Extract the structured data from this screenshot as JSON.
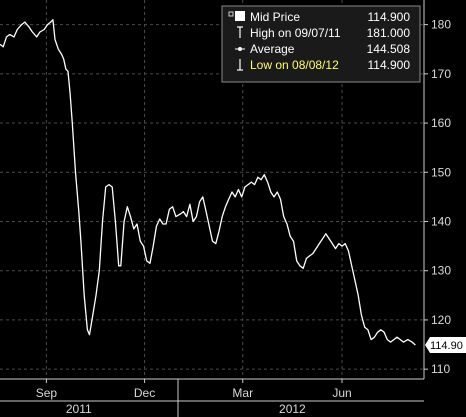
{
  "chart_data": {
    "type": "line",
    "title": "",
    "xlabel": "",
    "ylabel": "",
    "ylim": [
      108,
      185
    ],
    "xlim": [
      "2011-07-20",
      "2012-08-16"
    ],
    "y_ticks": [
      110,
      120,
      130,
      140,
      150,
      160,
      170,
      180
    ],
    "x_ticks": [
      {
        "label": "Sep",
        "date": "2011-09-01"
      },
      {
        "label": "Dec",
        "date": "2011-12-01"
      },
      {
        "label": "Mar",
        "date": "2012-03-01"
      },
      {
        "label": "Jun",
        "date": "2012-06-01"
      }
    ],
    "year_labels": [
      {
        "label": "2011",
        "date": "2011-10-01"
      },
      {
        "label": "2012",
        "date": "2012-04-16"
      }
    ],
    "year_separator": "2012-01-01",
    "grid": true,
    "legend_position": "top-right",
    "colors": {
      "background": "#000000",
      "line": "#ffffff",
      "grid": "#4a4a4a",
      "legend_bg": "#1a1a1a",
      "low_highlight": "#ffff66",
      "tag_bg": "#ffffff",
      "tag_text": "#000000"
    },
    "legend": [
      {
        "icon": "square-icon",
        "label": "Mid Price",
        "value": "114.900"
      },
      {
        "icon": "high-marker-icon",
        "label": "High on 09/07/11",
        "value": "181.000"
      },
      {
        "icon": "average-marker-icon",
        "label": "Average",
        "value": "144.508"
      },
      {
        "icon": "low-marker-icon",
        "label": "Low on 08/08/12",
        "value": "114.900",
        "highlight": true
      }
    ],
    "last_value_tag": "114.90",
    "series": [
      {
        "points": [
          [
            "2011-07-20",
            176.0
          ],
          [
            "2011-07-23",
            175.5
          ],
          [
            "2011-07-26",
            177.5
          ],
          [
            "2011-07-29",
            178.0
          ],
          [
            "2011-08-02",
            177.5
          ],
          [
            "2011-08-05",
            179.0
          ],
          [
            "2011-08-09",
            180.0
          ],
          [
            "2011-08-12",
            180.5
          ],
          [
            "2011-08-16",
            179.5
          ],
          [
            "2011-08-19",
            178.5
          ],
          [
            "2011-08-23",
            177.5
          ],
          [
            "2011-08-26",
            178.5
          ],
          [
            "2011-08-30",
            179.0
          ],
          [
            "2011-09-02",
            180.0
          ],
          [
            "2011-09-05",
            180.5
          ],
          [
            "2011-09-07",
            181.0
          ],
          [
            "2011-09-09",
            177.0
          ],
          [
            "2011-09-12",
            175.0
          ],
          [
            "2011-09-15",
            174.0
          ],
          [
            "2011-09-17",
            173.0
          ],
          [
            "2011-09-19",
            171.0
          ],
          [
            "2011-09-21",
            170.5
          ],
          [
            "2011-09-23",
            166.0
          ],
          [
            "2011-09-25",
            160.0
          ],
          [
            "2011-09-28",
            150.0
          ],
          [
            "2011-10-01",
            142.0
          ],
          [
            "2011-10-03",
            136.0
          ],
          [
            "2011-10-06",
            125.0
          ],
          [
            "2011-10-09",
            118.0
          ],
          [
            "2011-10-11",
            117.0
          ],
          [
            "2011-10-14",
            121.0
          ],
          [
            "2011-10-17",
            125.0
          ],
          [
            "2011-10-20",
            130.0
          ],
          [
            "2011-10-23",
            140.0
          ],
          [
            "2011-10-26",
            147.0
          ],
          [
            "2011-10-29",
            147.5
          ],
          [
            "2011-11-01",
            147.0
          ],
          [
            "2011-11-04",
            140.0
          ],
          [
            "2011-11-07",
            131.0
          ],
          [
            "2011-11-09",
            131.0
          ],
          [
            "2011-11-12",
            140.0
          ],
          [
            "2011-11-15",
            143.0
          ],
          [
            "2011-11-18",
            141.0
          ],
          [
            "2011-11-21",
            138.5
          ],
          [
            "2011-11-24",
            139.5
          ],
          [
            "2011-11-27",
            136.0
          ],
          [
            "2011-11-30",
            135.0
          ],
          [
            "2011-12-03",
            132.0
          ],
          [
            "2011-12-06",
            131.5
          ],
          [
            "2011-12-09",
            135.0
          ],
          [
            "2011-12-12",
            139.0
          ],
          [
            "2011-12-15",
            140.5
          ],
          [
            "2011-12-18",
            139.5
          ],
          [
            "2011-12-21",
            139.5
          ],
          [
            "2011-12-24",
            142.5
          ],
          [
            "2011-12-27",
            143.0
          ],
          [
            "2011-12-30",
            141.0
          ],
          [
            "2012-01-03",
            141.5
          ],
          [
            "2012-01-06",
            142.0
          ],
          [
            "2012-01-09",
            141.0
          ],
          [
            "2012-01-12",
            143.5
          ],
          [
            "2012-01-15",
            140.0
          ],
          [
            "2012-01-18",
            141.0
          ],
          [
            "2012-01-21",
            144.0
          ],
          [
            "2012-01-24",
            145.0
          ],
          [
            "2012-01-27",
            142.0
          ],
          [
            "2012-01-30",
            139.0
          ],
          [
            "2012-02-02",
            136.0
          ],
          [
            "2012-02-05",
            135.5
          ],
          [
            "2012-02-08",
            138.0
          ],
          [
            "2012-02-11",
            141.0
          ],
          [
            "2012-02-14",
            143.0
          ],
          [
            "2012-02-17",
            144.5
          ],
          [
            "2012-02-20",
            146.0
          ],
          [
            "2012-02-23",
            145.0
          ],
          [
            "2012-02-26",
            146.5
          ],
          [
            "2012-02-29",
            145.0
          ],
          [
            "2012-03-03",
            147.0
          ],
          [
            "2012-03-06",
            147.5
          ],
          [
            "2012-03-09",
            148.0
          ],
          [
            "2012-03-12",
            147.5
          ],
          [
            "2012-03-15",
            149.0
          ],
          [
            "2012-03-18",
            148.5
          ],
          [
            "2012-03-21",
            149.5
          ],
          [
            "2012-03-24",
            148.0
          ],
          [
            "2012-03-27",
            146.0
          ],
          [
            "2012-03-30",
            145.0
          ],
          [
            "2012-04-02",
            146.0
          ],
          [
            "2012-04-05",
            144.5
          ],
          [
            "2012-04-08",
            141.0
          ],
          [
            "2012-04-11",
            139.5
          ],
          [
            "2012-04-14",
            137.0
          ],
          [
            "2012-04-17",
            136.0
          ],
          [
            "2012-04-20",
            132.0
          ],
          [
            "2012-04-23",
            131.0
          ],
          [
            "2012-04-26",
            130.5
          ],
          [
            "2012-04-29",
            132.5
          ],
          [
            "2012-05-02",
            133.0
          ],
          [
            "2012-05-05",
            133.5
          ],
          [
            "2012-05-08",
            134.5
          ],
          [
            "2012-05-11",
            135.5
          ],
          [
            "2012-05-14",
            136.5
          ],
          [
            "2012-05-17",
            137.5
          ],
          [
            "2012-05-20",
            136.5
          ],
          [
            "2012-05-23",
            135.5
          ],
          [
            "2012-05-26",
            134.5
          ],
          [
            "2012-05-29",
            135.5
          ],
          [
            "2012-06-01",
            135.0
          ],
          [
            "2012-06-04",
            135.5
          ],
          [
            "2012-06-07",
            134.0
          ],
          [
            "2012-06-10",
            131.0
          ],
          [
            "2012-06-13",
            128.0
          ],
          [
            "2012-06-16",
            125.0
          ],
          [
            "2012-06-19",
            121.0
          ],
          [
            "2012-06-22",
            118.5
          ],
          [
            "2012-06-25",
            118.0
          ],
          [
            "2012-06-28",
            116.0
          ],
          [
            "2012-07-01",
            116.5
          ],
          [
            "2012-07-04",
            117.5
          ],
          [
            "2012-07-07",
            118.0
          ],
          [
            "2012-07-10",
            117.5
          ],
          [
            "2012-07-13",
            116.0
          ],
          [
            "2012-07-16",
            115.5
          ],
          [
            "2012-07-19",
            116.0
          ],
          [
            "2012-07-22",
            116.5
          ],
          [
            "2012-07-25",
            116.0
          ],
          [
            "2012-07-28",
            115.5
          ],
          [
            "2012-08-01",
            116.0
          ],
          [
            "2012-08-05",
            115.5
          ],
          [
            "2012-08-08",
            114.9
          ]
        ]
      }
    ]
  }
}
